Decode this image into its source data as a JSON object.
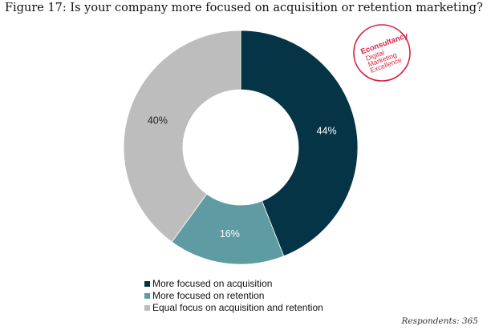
{
  "title": "Figure 17: Is your company more focused on acquisition or retention marketing?",
  "footnote": "Respondents: 365",
  "badge": {
    "brand": "Econsultancy",
    "line1": "Digital",
    "line2": "Marketing",
    "line3": "Excellence",
    "color": "#d9233f"
  },
  "chart_data": {
    "type": "pie",
    "donut": true,
    "categories": [
      "More focused on acquisition",
      "More focused on retention",
      "Equal focus on acquisition and retention"
    ],
    "values": [
      44,
      16,
      40
    ],
    "labels": [
      "44%",
      "16%",
      "40%"
    ],
    "colors": [
      "#043446",
      "#5e9ba2",
      "#bdbdbd"
    ],
    "label_colors": [
      "#ffffff",
      "#ffffff",
      "#222222"
    ],
    "legend_position": "bottom"
  }
}
